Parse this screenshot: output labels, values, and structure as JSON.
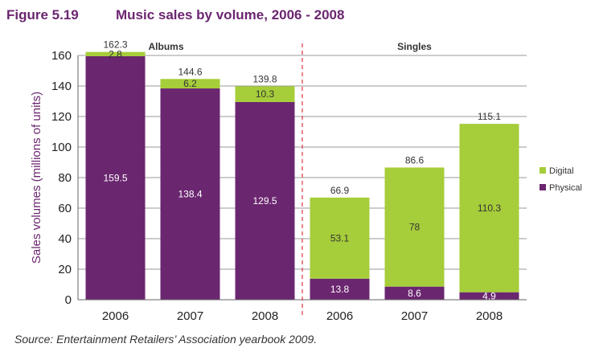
{
  "figure": {
    "number": "Figure 5.19",
    "title": "Music sales by volume, 2006 - 2008"
  },
  "source": "Source: Entertainment Retailers’ Association yearbook 2009.",
  "colors": {
    "physical": "#6b2670",
    "digital": "#a6cd3a",
    "title": "#6b2670",
    "divider": "#e0454f",
    "grid": "#9a9a9a"
  },
  "chart_data": {
    "type": "bar",
    "stacked": true,
    "ylabel": "Sales volumes (millions of units)",
    "ylim": [
      0,
      160
    ],
    "yticks": [
      0,
      20,
      40,
      60,
      80,
      100,
      120,
      140,
      160
    ],
    "grid": true,
    "legend_position": "right",
    "groups": [
      {
        "title": "Albums",
        "categories": [
          "2006",
          "2007",
          "2008"
        ]
      },
      {
        "title": "Singles",
        "categories": [
          "2006",
          "2007",
          "2008"
        ]
      }
    ],
    "categories": [
      "2006",
      "2007",
      "2008",
      "2006",
      "2007",
      "2008"
    ],
    "series": [
      {
        "name": "Physical",
        "values": [
          159.5,
          138.4,
          129.5,
          13.8,
          8.6,
          4.9
        ]
      },
      {
        "name": "Digital",
        "values": [
          2.8,
          6.2,
          10.3,
          53.1,
          78,
          110.3
        ]
      }
    ],
    "totals": [
      162.3,
      144.6,
      139.8,
      66.9,
      86.6,
      115.1
    ],
    "value_labels": {
      "physical": [
        "159.5",
        "138.4",
        "129.5",
        "13.8",
        "8.6",
        "4.9"
      ],
      "digital": [
        "2.8",
        "6.2",
        "10.3",
        "53.1",
        "78",
        "110.3"
      ],
      "totals": [
        "162.3",
        "144.6",
        "139.8",
        "66.9",
        "86.6",
        "115.1"
      ]
    },
    "legend": [
      "Digital",
      "Physical"
    ]
  }
}
